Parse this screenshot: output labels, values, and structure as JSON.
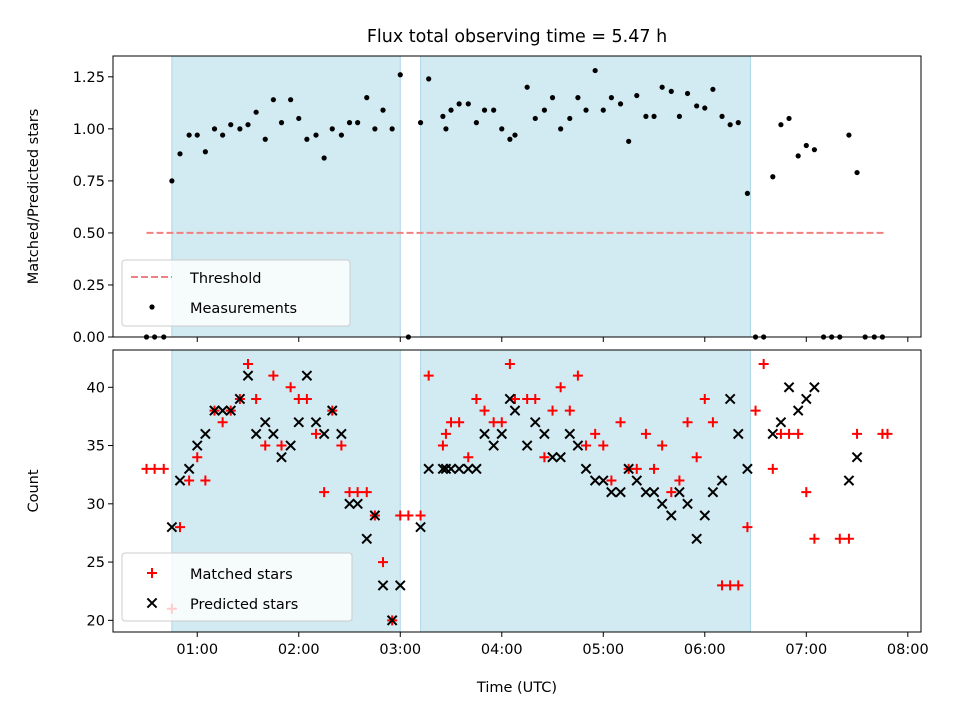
{
  "chart_data": [
    {
      "type": "scatter",
      "title": "Flux total observing time = 5.47 h",
      "ylabel": "Matched/Predicted stars",
      "xlabel": "",
      "xlim": [
        0.17,
        8.13
      ],
      "ylim": [
        0,
        1.35
      ],
      "y_ticks": [
        0,
        0.25,
        0.5,
        0.75,
        1.0,
        1.25
      ],
      "y_tick_labels": [
        "0.00",
        "0.25",
        "0.50",
        "0.75",
        "1.00",
        "1.25"
      ],
      "x_tick_labels_shown": false,
      "legend_position": "lower-left",
      "shaded_spans_hours": [
        [
          0.75,
          3.0
        ],
        [
          3.2,
          6.45
        ]
      ],
      "threshold": {
        "name": "Threshold",
        "value": 0.5,
        "x_range": [
          0.5,
          7.78
        ],
        "color": "#f08080",
        "dash": true
      },
      "series": [
        {
          "name": "Measurements",
          "color": "#000000",
          "marker": "dot",
          "x": [
            0.5,
            0.58,
            0.67,
            0.75,
            0.83,
            0.92,
            1.0,
            1.08,
            1.17,
            1.25,
            1.33,
            1.42,
            1.5,
            1.58,
            1.67,
            1.75,
            1.83,
            1.92,
            2.0,
            2.08,
            2.17,
            2.25,
            2.33,
            2.42,
            2.5,
            2.58,
            2.67,
            2.75,
            2.83,
            2.92,
            3.0,
            3.08,
            3.2,
            3.28,
            3.42,
            3.45,
            3.5,
            3.58,
            3.67,
            3.75,
            3.83,
            3.92,
            4.0,
            4.08,
            4.13,
            4.25,
            4.33,
            4.42,
            4.5,
            4.58,
            4.67,
            4.75,
            4.83,
            4.92,
            5.0,
            5.08,
            5.17,
            5.25,
            5.33,
            5.42,
            5.5,
            5.58,
            5.67,
            5.75,
            5.83,
            5.92,
            6.0,
            6.08,
            6.17,
            6.25,
            6.33,
            6.42,
            6.5,
            6.58,
            6.67,
            6.75,
            6.83,
            6.92,
            7.0,
            7.08,
            7.17,
            7.25,
            7.33,
            7.42,
            7.5,
            7.58,
            7.67,
            7.75
          ],
          "y": [
            0,
            0,
            0,
            0.75,
            0.88,
            0.97,
            0.97,
            0.89,
            1.0,
            0.97,
            1.02,
            1.0,
            1.02,
            1.08,
            0.95,
            1.14,
            1.03,
            1.14,
            1.05,
            0.95,
            0.97,
            0.86,
            1.0,
            0.97,
            1.03,
            1.03,
            1.15,
            1.0,
            1.09,
            1.0,
            1.26,
            0,
            1.03,
            1.24,
            1.06,
            1.0,
            1.09,
            1.12,
            1.12,
            1.03,
            1.09,
            1.09,
            1.0,
            0.95,
            0.97,
            1.2,
            1.05,
            1.09,
            1.15,
            1.0,
            1.05,
            1.15,
            1.09,
            1.28,
            1.09,
            1.15,
            1.12,
            0.94,
            1.16,
            1.06,
            1.06,
            1.2,
            1.18,
            1.06,
            1.17,
            1.11,
            1.1,
            1.19,
            1.06,
            1.02,
            1.03,
            0.69,
            0,
            0,
            0.77,
            1.02,
            1.05,
            0.87,
            0.92,
            0.9,
            0,
            0,
            0,
            0.97,
            0.79,
            0,
            0,
            0
          ]
        }
      ]
    },
    {
      "type": "scatter",
      "title": "",
      "ylabel": "Count",
      "xlabel": "Time (UTC)",
      "xlim": [
        0.17,
        8.13
      ],
      "ylim": [
        19,
        43.2
      ],
      "y_ticks": [
        20,
        25,
        30,
        35,
        40
      ],
      "y_tick_labels": [
        "20",
        "25",
        "30",
        "35",
        "40"
      ],
      "x_ticks": [
        1,
        2,
        3,
        4,
        5,
        6,
        7,
        8
      ],
      "x_tick_labels": [
        "01:00",
        "02:00",
        "03:00",
        "04:00",
        "05:00",
        "06:00",
        "07:00",
        "08:00"
      ],
      "legend_position": "lower-left",
      "shaded_spans_hours": [
        [
          0.75,
          3.0
        ],
        [
          3.2,
          6.45
        ]
      ],
      "series": [
        {
          "name": "Matched stars",
          "color": "#ff0000",
          "marker": "plus",
          "x": [
            0.5,
            0.58,
            0.67,
            0.75,
            0.83,
            0.92,
            1.0,
            1.08,
            1.17,
            1.25,
            1.33,
            1.42,
            1.5,
            1.58,
            1.67,
            1.75,
            1.83,
            1.92,
            2.0,
            2.08,
            2.17,
            2.25,
            2.33,
            2.42,
            2.5,
            2.58,
            2.67,
            2.75,
            2.83,
            2.92,
            3.0,
            3.08,
            3.2,
            3.28,
            3.42,
            3.45,
            3.5,
            3.58,
            3.67,
            3.75,
            3.83,
            3.92,
            4.0,
            4.08,
            4.13,
            4.25,
            4.33,
            4.42,
            4.5,
            4.58,
            4.67,
            4.75,
            4.83,
            4.92,
            5.0,
            5.08,
            5.17,
            5.25,
            5.33,
            5.42,
            5.5,
            5.58,
            5.67,
            5.75,
            5.83,
            5.92,
            6.0,
            6.08,
            6.17,
            6.25,
            6.33,
            6.42,
            6.5,
            6.58,
            6.67,
            6.75,
            6.83,
            6.92,
            7.0,
            7.08,
            7.33,
            7.42,
            7.5,
            7.75,
            7.8
          ],
          "y": [
            33,
            33,
            33,
            21,
            28,
            32,
            34,
            32,
            38,
            37,
            38,
            39,
            42,
            39,
            35,
            41,
            35,
            40,
            39,
            39,
            36,
            31,
            38,
            35,
            31,
            31,
            31,
            29,
            25,
            20,
            29,
            29,
            29,
            41,
            35,
            36,
            37,
            37,
            34,
            39,
            38,
            37,
            37,
            42,
            39,
            39,
            39,
            34,
            38,
            40,
            38,
            41,
            35,
            36,
            35,
            32,
            37,
            33,
            33,
            36,
            33,
            35,
            31,
            32,
            37,
            34,
            39,
            37,
            23,
            23,
            23,
            28,
            38,
            42,
            33,
            36,
            36,
            36,
            31,
            27,
            27,
            27,
            36,
            36,
            36
          ]
        },
        {
          "name": "Predicted stars",
          "color": "#000000",
          "marker": "x",
          "x": [
            0.75,
            0.83,
            0.92,
            1.0,
            1.08,
            1.17,
            1.25,
            1.33,
            1.42,
            1.5,
            1.58,
            1.67,
            1.75,
            1.83,
            1.92,
            2.0,
            2.08,
            2.17,
            2.25,
            2.33,
            2.42,
            2.5,
            2.58,
            2.67,
            2.75,
            2.83,
            2.92,
            3.0,
            3.2,
            3.28,
            3.42,
            3.45,
            3.5,
            3.58,
            3.67,
            3.75,
            3.83,
            3.92,
            4.0,
            4.08,
            4.13,
            4.25,
            4.33,
            4.42,
            4.5,
            4.58,
            4.67,
            4.75,
            4.83,
            4.92,
            5.0,
            5.08,
            5.17,
            5.25,
            5.33,
            5.42,
            5.5,
            5.58,
            5.67,
            5.75,
            5.83,
            5.92,
            6.0,
            6.08,
            6.17,
            6.25,
            6.33,
            6.42,
            6.67,
            6.75,
            6.83,
            6.92,
            7.0,
            7.08,
            7.42,
            7.5
          ],
          "y": [
            28,
            32,
            33,
            35,
            36,
            38,
            38,
            38,
            39,
            41,
            36,
            37,
            36,
            34,
            35,
            37,
            41,
            37,
            36,
            38,
            36,
            30,
            30,
            27,
            29,
            23,
            20,
            23,
            28,
            33,
            33,
            33,
            33,
            33,
            33,
            33,
            36,
            35,
            36,
            39,
            38,
            35,
            37,
            36,
            34,
            34,
            36,
            35,
            33,
            32,
            32,
            31,
            31,
            33,
            32,
            31,
            31,
            30,
            29,
            31,
            30,
            27,
            29,
            31,
            32,
            39,
            36,
            33,
            36,
            37,
            40,
            38,
            39,
            40,
            32,
            34
          ]
        }
      ]
    }
  ]
}
